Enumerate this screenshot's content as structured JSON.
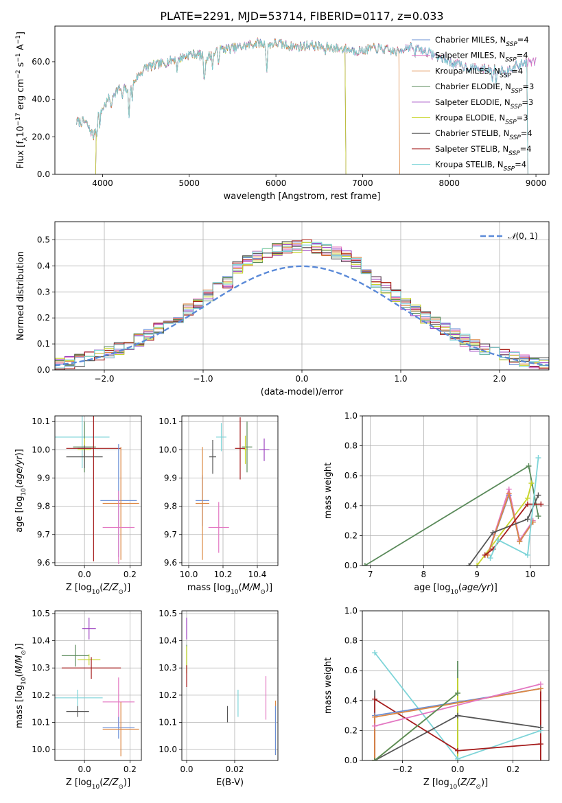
{
  "figure": {
    "title": "PLATE=2291, MJD=53714, FIBERID=0117, z=0.033"
  },
  "chart_data": [
    {
      "id": "spectrum",
      "type": "line",
      "xlabel": "wavelength [Angstrom, rest frame]",
      "ylabel": "Flux [f_λ 10^-17 erg cm^-2 s^-1 A^-1]",
      "xlim": [
        3450,
        9150
      ],
      "ylim": [
        0,
        79
      ],
      "xticks": [
        4000,
        5000,
        6000,
        7000,
        8000,
        9000
      ],
      "yticks": [
        0,
        20,
        40,
        60
      ],
      "grid": false,
      "legend_position": "top-right",
      "continuum_points": [
        [
          3700,
          28
        ],
        [
          3800,
          28
        ],
        [
          3900,
          20
        ],
        [
          3950,
          33
        ],
        [
          4000,
          35
        ],
        [
          4100,
          42
        ],
        [
          4200,
          46
        ],
        [
          4300,
          45
        ],
        [
          4400,
          52
        ],
        [
          4500,
          57
        ],
        [
          4600,
          58
        ],
        [
          4700,
          59
        ],
        [
          4800,
          61
        ],
        [
          4900,
          62
        ],
        [
          5000,
          64
        ],
        [
          5100,
          64
        ],
        [
          5200,
          62
        ],
        [
          5300,
          65
        ],
        [
          5400,
          67
        ],
        [
          5500,
          67
        ],
        [
          5600,
          68
        ],
        [
          5700,
          69
        ],
        [
          5800,
          70
        ],
        [
          5900,
          69
        ],
        [
          6000,
          70
        ],
        [
          6100,
          69
        ],
        [
          6200,
          68
        ],
        [
          6300,
          68
        ],
        [
          6400,
          69
        ],
        [
          6500,
          68
        ],
        [
          6600,
          68
        ],
        [
          6700,
          67
        ],
        [
          6800,
          67
        ],
        [
          6900,
          66
        ],
        [
          7000,
          66
        ],
        [
          7100,
          67
        ],
        [
          7200,
          67
        ],
        [
          7300,
          66
        ],
        [
          7400,
          65
        ],
        [
          7500,
          68
        ],
        [
          7600,
          68
        ],
        [
          7700,
          66
        ],
        [
          7800,
          64
        ],
        [
          7900,
          62
        ],
        [
          8000,
          60
        ],
        [
          8200,
          57
        ],
        [
          8400,
          56
        ],
        [
          8600,
          56
        ],
        [
          8800,
          58
        ],
        [
          8900,
          60
        ]
      ],
      "absorption_lines": [
        [
          3934,
          7
        ],
        [
          3969,
          8
        ],
        [
          4102,
          8
        ],
        [
          4226,
          6
        ],
        [
          4304,
          14
        ],
        [
          4341,
          8
        ],
        [
          4861,
          6
        ],
        [
          5175,
          14
        ],
        [
          5270,
          6
        ],
        [
          5335,
          5
        ],
        [
          5895,
          14
        ],
        [
          6563,
          4
        ],
        [
          7600,
          7
        ],
        [
          8498,
          5
        ],
        [
          8542,
          7
        ],
        [
          8662,
          6
        ]
      ],
      "series": [
        {
          "name": "Chabrier MILES, N_SSP=4",
          "color": "#6a8fd6",
          "range": [
            3700,
            9000
          ]
        },
        {
          "name": "Salpeter MILES, N_SSP=4",
          "color": "#e377c2",
          "range": [
            3700,
            9000
          ]
        },
        {
          "name": "Kroupa MILES, N_SSP=4",
          "color": "#dd8844",
          "range": [
            3700,
            7420
          ]
        },
        {
          "name": "Chabrier ELODIE, N_SSP=3",
          "color": "#5a8a5a",
          "range": [
            3920,
            6800
          ]
        },
        {
          "name": "Salpeter ELODIE, N_SSP=3",
          "color": "#9b3fbf",
          "range": [
            3920,
            6800
          ]
        },
        {
          "name": "Kroupa ELODIE, N_SSP=3",
          "color": "#c8d62a",
          "range": [
            3920,
            6800
          ]
        },
        {
          "name": "Chabrier STELIB, N_SSP=4",
          "color": "#555555",
          "range": [
            3700,
            8900
          ]
        },
        {
          "name": "Salpeter STELIB, N_SSP=4",
          "color": "#a51c1c",
          "range": [
            3700,
            8900
          ]
        },
        {
          "name": "Kroupa STELIB, N_SSP=4",
          "color": "#7dd4d8",
          "range": [
            3700,
            8900
          ]
        }
      ]
    },
    {
      "id": "residuals",
      "type": "histogram",
      "xlabel": "(data-model)/error",
      "ylabel": "Normed distribution",
      "xlim": [
        -2.5,
        2.5
      ],
      "ylim": [
        0,
        0.57
      ],
      "xticks": [
        -2,
        -1,
        0,
        1,
        2
      ],
      "yticks": [
        0.0,
        0.1,
        0.2,
        0.3,
        0.4,
        0.5
      ],
      "grid": true,
      "legend": {
        "label": "N(0,1)",
        "position": "top-right",
        "color": "#5b8ad8"
      },
      "bin_width": 0.1,
      "approx_peak": 0.49
    },
    {
      "id": "age_vs_Z",
      "type": "errorbar",
      "xlabel": "Z [log10(Z/Z_sun)]",
      "ylabel": "age [log10(age/yr)]",
      "xlim": [
        -0.13,
        0.25
      ],
      "ylim": [
        9.59,
        10.12
      ],
      "xticks": [
        0.0,
        0.2
      ],
      "yticks": [
        9.6,
        9.7,
        9.8,
        9.9,
        10.0,
        10.1
      ],
      "grid": true,
      "points": [
        {
          "x": -0.01,
          "y": 10.045,
          "xerr": 0.12,
          "yerr": 0.11,
          "color": "#7dd4d8"
        },
        {
          "x": 0.0,
          "y": 10.01,
          "xerr": 0.05,
          "yerr": 0.09,
          "color": "#5a8a5a"
        },
        {
          "x": 0.0,
          "y": 10.005,
          "xerr": 0.03,
          "yerr": 0.03,
          "color": "#9b3fbf"
        },
        {
          "x": 0.0,
          "y": 10.0,
          "xerr": 0.03,
          "yerr": 0.04,
          "color": "#c8d62a"
        },
        {
          "x": 0.0,
          "y": 9.975,
          "xerr": 0.08,
          "yerr": 0.04,
          "color": "#555555"
        },
        {
          "x": 0.04,
          "y": 10.005,
          "xerr": 0.12,
          "yerr": 0.4,
          "color": "#a51c1c"
        },
        {
          "x": 0.15,
          "y": 9.82,
          "xerr": 0.08,
          "yerr": 0.2,
          "color": "#6a8fd6"
        },
        {
          "x": 0.16,
          "y": 9.81,
          "xerr": 0.08,
          "yerr": 0.2,
          "color": "#dd8844"
        },
        {
          "x": 0.15,
          "y": 9.725,
          "xerr": 0.07,
          "yerr": 0.13,
          "color": "#e377c2"
        }
      ]
    },
    {
      "id": "age_vs_mass",
      "type": "errorbar",
      "xlabel": "mass [log10(M/M_sun)]",
      "ylabel": "",
      "xlim": [
        9.96,
        10.52
      ],
      "ylim": [
        9.59,
        10.12
      ],
      "xticks": [
        10.0,
        10.2,
        10.4
      ],
      "yticks": [
        9.6,
        9.7,
        9.8,
        9.9,
        10.0,
        10.1
      ],
      "grid": true,
      "points": [
        {
          "x": 10.19,
          "y": 10.045,
          "xerr": 0.03,
          "yerr": 0.05,
          "color": "#7dd4d8"
        },
        {
          "x": 10.14,
          "y": 9.975,
          "xerr": 0.02,
          "yerr": 0.06,
          "color": "#555555"
        },
        {
          "x": 10.3,
          "y": 10.005,
          "xerr": 0.03,
          "yerr": 0.11,
          "color": "#a51c1c"
        },
        {
          "x": 10.34,
          "y": 10.01,
          "xerr": 0.03,
          "yerr": 0.09,
          "color": "#5a8a5a"
        },
        {
          "x": 10.33,
          "y": 10.0,
          "xerr": 0.01,
          "yerr": 0.05,
          "color": "#c8d62a"
        },
        {
          "x": 10.44,
          "y": 10.0,
          "xerr": 0.03,
          "yerr": 0.04,
          "color": "#9b3fbf"
        },
        {
          "x": 10.08,
          "y": 9.82,
          "xerr": 0.04,
          "yerr": 0.09,
          "color": "#6a8fd6"
        },
        {
          "x": 10.08,
          "y": 9.81,
          "xerr": 0.04,
          "yerr": 0.2,
          "color": "#dd8844"
        },
        {
          "x": 10.175,
          "y": 9.725,
          "xerr": 0.06,
          "yerr": 0.09,
          "color": "#e377c2"
        }
      ]
    },
    {
      "id": "mass_weight_vs_age",
      "type": "line",
      "xlabel": "age [log10(age/yr)]",
      "ylabel": "mass weight",
      "xlim": [
        6.85,
        10.35
      ],
      "ylim": [
        0,
        1.0
      ],
      "xticks": [
        7,
        8,
        9,
        10
      ],
      "yticks": [
        0.0,
        0.2,
        0.4,
        0.6,
        0.8,
        1.0
      ],
      "grid": true,
      "series": [
        {
          "name": "Chabrier ELODIE",
          "color": "#5a8a5a",
          "x": [
            6.9,
            9.97,
            10.15
          ],
          "y": [
            0,
            0.665,
            0.33
          ]
        },
        {
          "name": "Kroupa ELODIE",
          "color": "#c8d62a",
          "x": [
            9.0,
            9.95,
            10.02
          ],
          "y": [
            0,
            0.45,
            0.55
          ]
        },
        {
          "name": "Salpeter MILES",
          "color": "#e377c2",
          "x": [
            9.2,
            9.6,
            9.8,
            10.05
          ],
          "y": [
            0.07,
            0.51,
            0.17,
            0.3
          ]
        },
        {
          "name": "Chabrier MILES",
          "color": "#6a8fd6",
          "x": [
            9.2,
            9.6,
            9.8,
            10.05
          ],
          "y": [
            0.07,
            0.47,
            0.16,
            0.29
          ]
        },
        {
          "name": "Kroupa MILES",
          "color": "#dd8844",
          "x": [
            9.2,
            9.6,
            9.8,
            10.05
          ],
          "y": [
            0.07,
            0.48,
            0.16,
            0.29
          ]
        },
        {
          "name": "Chabrier STELIB",
          "color": "#555555",
          "x": [
            8.85,
            9.3,
            9.95,
            10.15
          ],
          "y": [
            0,
            0.22,
            0.31,
            0.47
          ]
        },
        {
          "name": "Salpeter STELIB",
          "color": "#a51c1c",
          "x": [
            9.15,
            9.3,
            9.95,
            10.2
          ],
          "y": [
            0.07,
            0.11,
            0.41,
            0.41
          ]
        },
        {
          "name": "Kroupa STELIB",
          "color": "#7dd4d8",
          "x": [
            9.25,
            9.4,
            9.95,
            10.15
          ],
          "y": [
            0.05,
            0.17,
            0.07,
            0.72
          ]
        }
      ]
    },
    {
      "id": "mass_vs_Z",
      "type": "errorbar",
      "xlabel": "Z [log10(Z/Z_sun)]",
      "ylabel": "mass [log10(M/M_sun)]",
      "xlim": [
        -0.13,
        0.25
      ],
      "ylim": [
        9.96,
        10.51
      ],
      "xticks": [
        0.0,
        0.2
      ],
      "yticks": [
        10.0,
        10.1,
        10.2,
        10.3,
        10.4,
        10.5
      ],
      "grid": true,
      "points": [
        {
          "x": 0.02,
          "y": 10.445,
          "xerr": 0.03,
          "yerr": 0.04,
          "color": "#9b3fbf"
        },
        {
          "x": -0.04,
          "y": 10.345,
          "xerr": 0.06,
          "yerr": 0.04,
          "color": "#5a8a5a"
        },
        {
          "x": 0.02,
          "y": 10.33,
          "xerr": 0.05,
          "yerr": 0.02,
          "color": "#c8d62a"
        },
        {
          "x": 0.03,
          "y": 10.3,
          "xerr": 0.13,
          "yerr": 0.04,
          "color": "#a51c1c"
        },
        {
          "x": -0.03,
          "y": 10.19,
          "xerr": 0.11,
          "yerr": 0.03,
          "color": "#7dd4d8"
        },
        {
          "x": 0.15,
          "y": 10.175,
          "xerr": 0.07,
          "yerr": 0.09,
          "color": "#e377c2"
        },
        {
          "x": -0.03,
          "y": 10.14,
          "xerr": 0.05,
          "yerr": 0.02,
          "color": "#555555"
        },
        {
          "x": 0.15,
          "y": 10.08,
          "xerr": 0.07,
          "yerr": 0.04,
          "color": "#6a8fd6"
        },
        {
          "x": 0.16,
          "y": 10.075,
          "xerr": 0.08,
          "yerr": 0.1,
          "color": "#dd8844"
        }
      ]
    },
    {
      "id": "mass_vs_ebv",
      "type": "errorbar",
      "xlabel": "E(B-V)",
      "ylabel": "",
      "xlim": [
        -0.002,
        0.038
      ],
      "ylim": [
        9.96,
        10.51
      ],
      "xticks": [
        0.0,
        0.02
      ],
      "yticks": [
        10.0,
        10.1,
        10.2,
        10.3,
        10.4,
        10.5
      ],
      "grid": true,
      "points": [
        {
          "x": 0.0,
          "y": 10.445,
          "xerr": 0,
          "yerr": 0.04,
          "color": "#9b3fbf"
        },
        {
          "x": 0.0,
          "y": 10.345,
          "xerr": 0,
          "yerr": 0.04,
          "color": "#5a8a5a"
        },
        {
          "x": 0.0,
          "y": 10.33,
          "xerr": 0,
          "yerr": 0.05,
          "color": "#c8d62a"
        },
        {
          "x": 0.0,
          "y": 10.27,
          "xerr": 0,
          "yerr": 0.04,
          "color": "#a51c1c"
        },
        {
          "x": 0.0214,
          "y": 10.17,
          "xerr": 0,
          "yerr": 0.05,
          "color": "#7dd4d8"
        },
        {
          "x": 0.017,
          "y": 10.13,
          "xerr": 0,
          "yerr": 0.03,
          "color": "#555555"
        },
        {
          "x": 0.033,
          "y": 10.19,
          "xerr": 0,
          "yerr": 0.08,
          "color": "#e377c2"
        },
        {
          "x": 0.037,
          "y": 10.08,
          "xerr": 0,
          "yerr": 0.1,
          "color": "#dd8844"
        },
        {
          "x": 0.037,
          "y": 10.07,
          "xerr": 0,
          "yerr": 0.09,
          "color": "#6a8fd6"
        }
      ]
    },
    {
      "id": "mass_weight_vs_Z",
      "type": "line",
      "xlabel": "Z [log10(Z/Z_sun)]",
      "ylabel": "mass weight",
      "xlim": [
        -0.345,
        0.33
      ],
      "ylim": [
        0,
        1.0
      ],
      "xticks": [
        -0.2,
        0.0,
        0.2
      ],
      "yticks": [
        0.0,
        0.2,
        0.4,
        0.6,
        0.8,
        1.0
      ],
      "grid": true,
      "series": [
        {
          "name": "Kroupa STELIB",
          "color": "#7dd4d8",
          "x": [
            -0.3,
            0.0,
            0.3
          ],
          "y": [
            0.72,
            0.01,
            0.2
          ]
        },
        {
          "name": "Salpeter STELIB",
          "color": "#a51c1c",
          "x": [
            -0.3,
            0.0,
            0.3
          ],
          "y": [
            0.41,
            0.065,
            0.11
          ]
        },
        {
          "name": "Chabrier STELIB",
          "color": "#555555",
          "x": [
            -0.3,
            0.0,
            0.3
          ],
          "y": [
            0.0,
            0.3,
            0.22
          ]
        },
        {
          "name": "Chabrier MILES",
          "color": "#6a8fd6",
          "x": [
            -0.3,
            0.3
          ],
          "y": [
            0.3,
            0.48
          ]
        },
        {
          "name": "Kroupa MILES",
          "color": "#dd8844",
          "x": [
            -0.3,
            0.3
          ],
          "y": [
            0.29,
            0.48
          ]
        },
        {
          "name": "Salpeter MILES",
          "color": "#e377c2",
          "x": [
            -0.3,
            0.3
          ],
          "y": [
            0.23,
            0.51
          ]
        },
        {
          "name": "Kroupa ELODIE",
          "color": "#c8d62a",
          "x": [
            -0.3,
            0.0
          ],
          "y": [
            0.0,
            0.45
          ]
        },
        {
          "name": "Chabrier ELODIE",
          "color": "#5a8a5a",
          "x": [
            -0.3,
            0.0
          ],
          "y": [
            0.0,
            0.45
          ]
        }
      ],
      "vertical_ticks": [
        {
          "x": -0.3,
          "y0": 0,
          "y1": 0.47,
          "color": "#555555"
        },
        {
          "x": -0.3,
          "y0": 0,
          "y1": 0.41,
          "color": "#a51c1c"
        },
        {
          "x": -0.3,
          "y0": 0,
          "y1": 0.3,
          "color": "#dd8844"
        },
        {
          "x": 0.0,
          "y0": 0,
          "y1": 0.665,
          "color": "#5a8a5a"
        },
        {
          "x": 0.0,
          "y0": 0,
          "y1": 0.55,
          "color": "#c8d62a"
        },
        {
          "x": 0.3,
          "y0": 0,
          "y1": 0.48,
          "color": "#a51c1c"
        }
      ]
    }
  ]
}
